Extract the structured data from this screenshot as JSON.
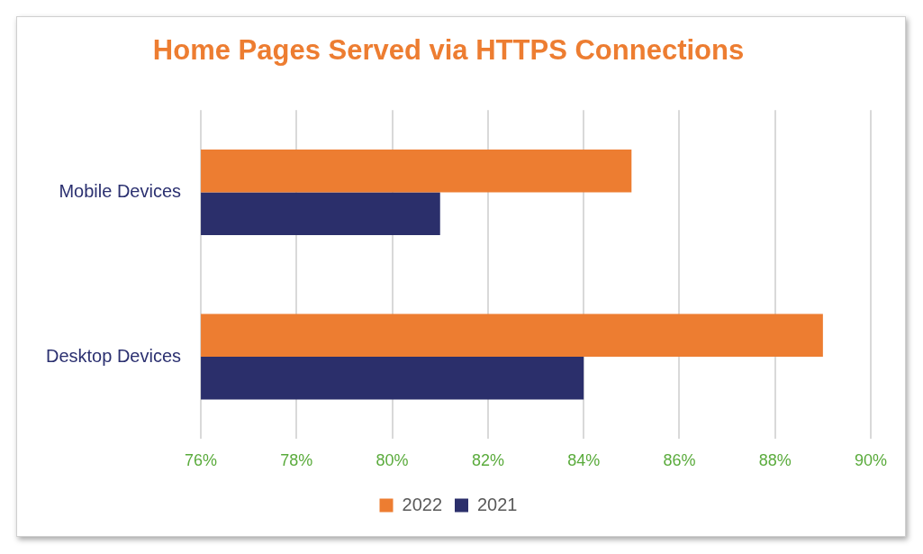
{
  "chart_data": {
    "type": "bar",
    "orientation": "horizontal",
    "title": "Home Pages Served via HTTPS Connections",
    "categories": [
      "Mobile Devices",
      "Desktop Devices"
    ],
    "series": [
      {
        "name": "2022",
        "color": "#ed7d31",
        "values": [
          85,
          89
        ]
      },
      {
        "name": "2021",
        "color": "#2b2f6b",
        "values": [
          81,
          84
        ]
      }
    ],
    "xlim": [
      76,
      90
    ],
    "xticks": [
      {
        "value": 76,
        "label": "76%"
      },
      {
        "value": 78,
        "label": "78%"
      },
      {
        "value": 80,
        "label": "80%"
      },
      {
        "value": 82,
        "label": "82%"
      },
      {
        "value": 84,
        "label": "84%"
      },
      {
        "value": 86,
        "label": "86%"
      },
      {
        "value": 88,
        "label": "88%"
      },
      {
        "value": 90,
        "label": "90%"
      }
    ],
    "grid": true,
    "legend": "bottom"
  }
}
